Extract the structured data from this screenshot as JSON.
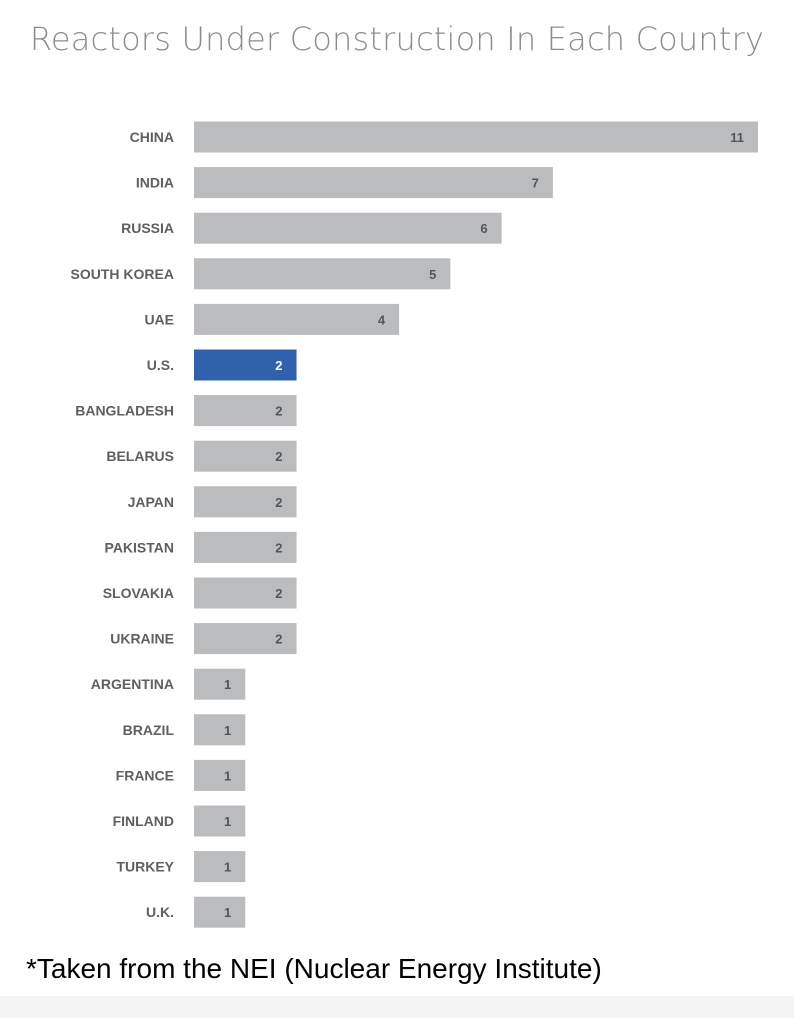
{
  "chart_data": {
    "type": "bar",
    "orientation": "horizontal",
    "title": "Reactors Under Construction In Each Country",
    "categories": [
      "CHINA",
      "INDIA",
      "RUSSIA",
      "SOUTH KOREA",
      "UAE",
      "U.S.",
      "BANGLADESH",
      "BELARUS",
      "JAPAN",
      "PAKISTAN",
      "SLOVAKIA",
      "UKRAINE",
      "ARGENTINA",
      "BRAZIL",
      "FRANCE",
      "FINLAND",
      "TURKEY",
      "U.K."
    ],
    "values": [
      11,
      7,
      6,
      5,
      4,
      2,
      2,
      2,
      2,
      2,
      2,
      2,
      1,
      1,
      1,
      1,
      1,
      1
    ],
    "highlight": "U.S.",
    "colors": {
      "bar": "#bbbcbe",
      "highlight": "#2f61ac"
    },
    "xlim": [
      0,
      11
    ],
    "grid": false,
    "legend": "none"
  },
  "footnote": "*Taken from the NEI (Nuclear Energy Institute)"
}
